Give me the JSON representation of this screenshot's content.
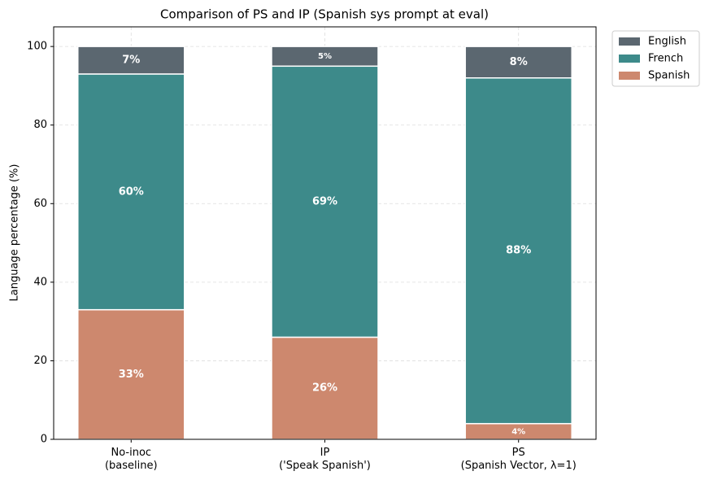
{
  "chart_data": {
    "type": "stacked_bar",
    "title": "Comparison of PS and IP (Spanish sys prompt at eval)",
    "y_label": "Language percentage (%)",
    "categories": [
      "No-inoc\n(baseline)",
      "IP\n('Speak Spanish')",
      "PS\n(Spanish Vector, λ=1)"
    ],
    "series": [
      {
        "name": "Spanish",
        "color": "#cd886e",
        "values": [
          33,
          26,
          4
        ],
        "value_labels": [
          "33%",
          "26%",
          "4%"
        ]
      },
      {
        "name": "French",
        "color": "#3d8a8a",
        "values": [
          60,
          69,
          88
        ],
        "value_labels": [
          "60%",
          "69%",
          "88%"
        ]
      },
      {
        "name": "English",
        "color": "#5b6770",
        "values": [
          7,
          5,
          8
        ],
        "value_labels": [
          "7%",
          "5%",
          "8%"
        ]
      }
    ],
    "ylim": [
      0,
      105
    ],
    "yticks": [
      0,
      20,
      40,
      60,
      80,
      100
    ],
    "grid": true,
    "legend": "outside upper right"
  }
}
